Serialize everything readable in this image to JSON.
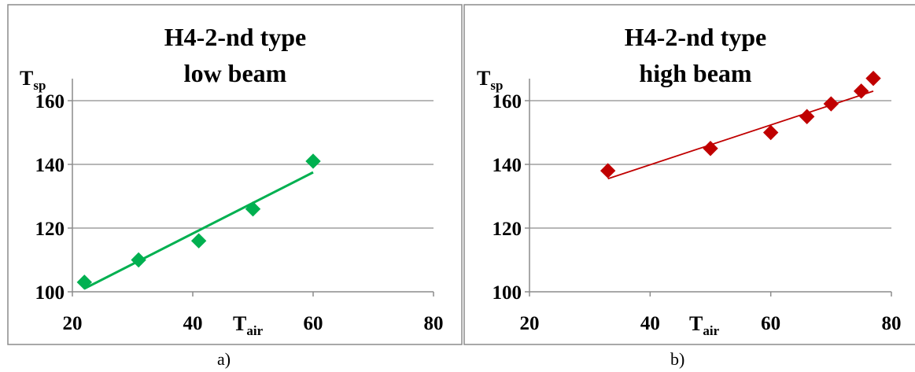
{
  "captions": [
    "a)",
    "b)"
  ],
  "chart_data": [
    {
      "type": "scatter",
      "title_lines": [
        "H4-2-nd type",
        "low beam"
      ],
      "ylabel": "T",
      "ylabel_sub": "sp",
      "xlabel": "T",
      "xlabel_sub": "air",
      "xlim": [
        20,
        80
      ],
      "ylim": [
        100,
        160
      ],
      "xticks": [
        20,
        40,
        60,
        80
      ],
      "yticks": [
        100,
        120,
        140,
        160
      ],
      "grid": "horizontal",
      "color": "#00b050",
      "marker": "diamond",
      "points": [
        {
          "x": 22,
          "y": 103
        },
        {
          "x": 31,
          "y": 110
        },
        {
          "x": 41,
          "y": 116
        },
        {
          "x": 50,
          "y": 126
        },
        {
          "x": 60,
          "y": 141
        }
      ],
      "trendline": {
        "x": [
          22,
          60
        ],
        "y": [
          101,
          137.5
        ]
      }
    },
    {
      "type": "scatter",
      "title_lines": [
        "H4-2-nd type",
        "high beam"
      ],
      "ylabel": "T",
      "ylabel_sub": "sp",
      "xlabel": "T",
      "xlabel_sub": "air",
      "xlim": [
        20,
        80
      ],
      "ylim": [
        100,
        160
      ],
      "xticks": [
        20,
        40,
        60,
        80
      ],
      "yticks": [
        100,
        120,
        140,
        160
      ],
      "grid": "horizontal",
      "color": "#c00000",
      "marker": "diamond",
      "points": [
        {
          "x": 33,
          "y": 138
        },
        {
          "x": 50,
          "y": 145
        },
        {
          "x": 60,
          "y": 150
        },
        {
          "x": 66,
          "y": 155
        },
        {
          "x": 70,
          "y": 159
        },
        {
          "x": 75,
          "y": 163
        },
        {
          "x": 77,
          "y": 167
        }
      ],
      "trendline": {
        "x": [
          33,
          77
        ],
        "y": [
          135.5,
          163
        ]
      }
    }
  ]
}
